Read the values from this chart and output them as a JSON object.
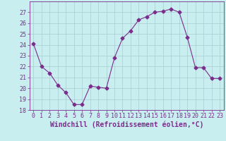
{
  "x": [
    0,
    1,
    2,
    3,
    4,
    5,
    6,
    7,
    8,
    9,
    10,
    11,
    12,
    13,
    14,
    15,
    16,
    17,
    18,
    19,
    20,
    21,
    22,
    23
  ],
  "y": [
    24.1,
    22.0,
    21.4,
    20.3,
    19.6,
    18.5,
    18.5,
    20.2,
    20.1,
    20.0,
    22.8,
    24.6,
    25.3,
    26.3,
    26.6,
    27.0,
    27.1,
    27.3,
    27.0,
    24.7,
    21.9,
    21.9,
    20.9,
    20.9
  ],
  "line_color": "#7b2d8b",
  "marker": "D",
  "markersize": 2.5,
  "bg_color": "#c8eef0",
  "grid_color": "#aaccd4",
  "ylim": [
    18,
    28
  ],
  "xlim": [
    -0.5,
    23.5
  ],
  "yticks": [
    18,
    19,
    20,
    21,
    22,
    23,
    24,
    25,
    26,
    27
  ],
  "xticks": [
    0,
    1,
    2,
    3,
    4,
    5,
    6,
    7,
    8,
    9,
    10,
    11,
    12,
    13,
    14,
    15,
    16,
    17,
    18,
    19,
    20,
    21,
    22,
    23
  ],
  "tick_fontsize": 6.0,
  "xlabel_fontsize": 7.0,
  "tick_color": "#7b2d8b",
  "axis_color": "#7b2d8b",
  "xlabel": "Windchill (Refroidissement éolien,°C)"
}
